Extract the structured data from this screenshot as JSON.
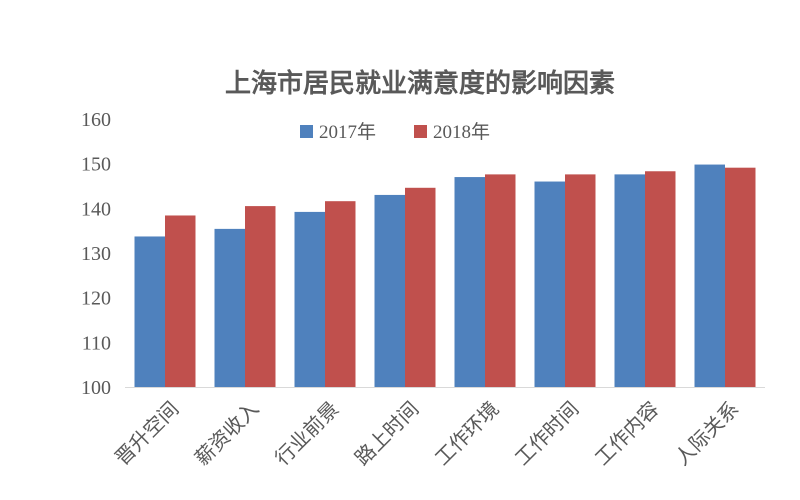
{
  "chart_data": {
    "type": "bar",
    "title": "上海市居民就业满意度的影响因素",
    "categories": [
      "晋升空间",
      "薪资收入",
      "行业前景",
      "路上时间",
      "工作环境",
      "工作时间",
      "工作内容",
      "人际关系"
    ],
    "series": [
      {
        "name": "2017年",
        "color": "#4f81bd",
        "values": [
          133.7,
          135.4,
          139.2,
          143.0,
          147.0,
          146.0,
          147.6,
          149.8
        ]
      },
      {
        "name": "2018年",
        "color": "#c0504d",
        "values": [
          138.4,
          140.5,
          141.6,
          144.6,
          147.6,
          147.6,
          148.3,
          149.1
        ]
      }
    ],
    "xlabel": "",
    "ylabel": "",
    "ylim": [
      100,
      160
    ],
    "yticks": [
      100,
      110,
      120,
      130,
      140,
      150,
      160
    ],
    "grid": false,
    "legend_position": "top-center"
  }
}
